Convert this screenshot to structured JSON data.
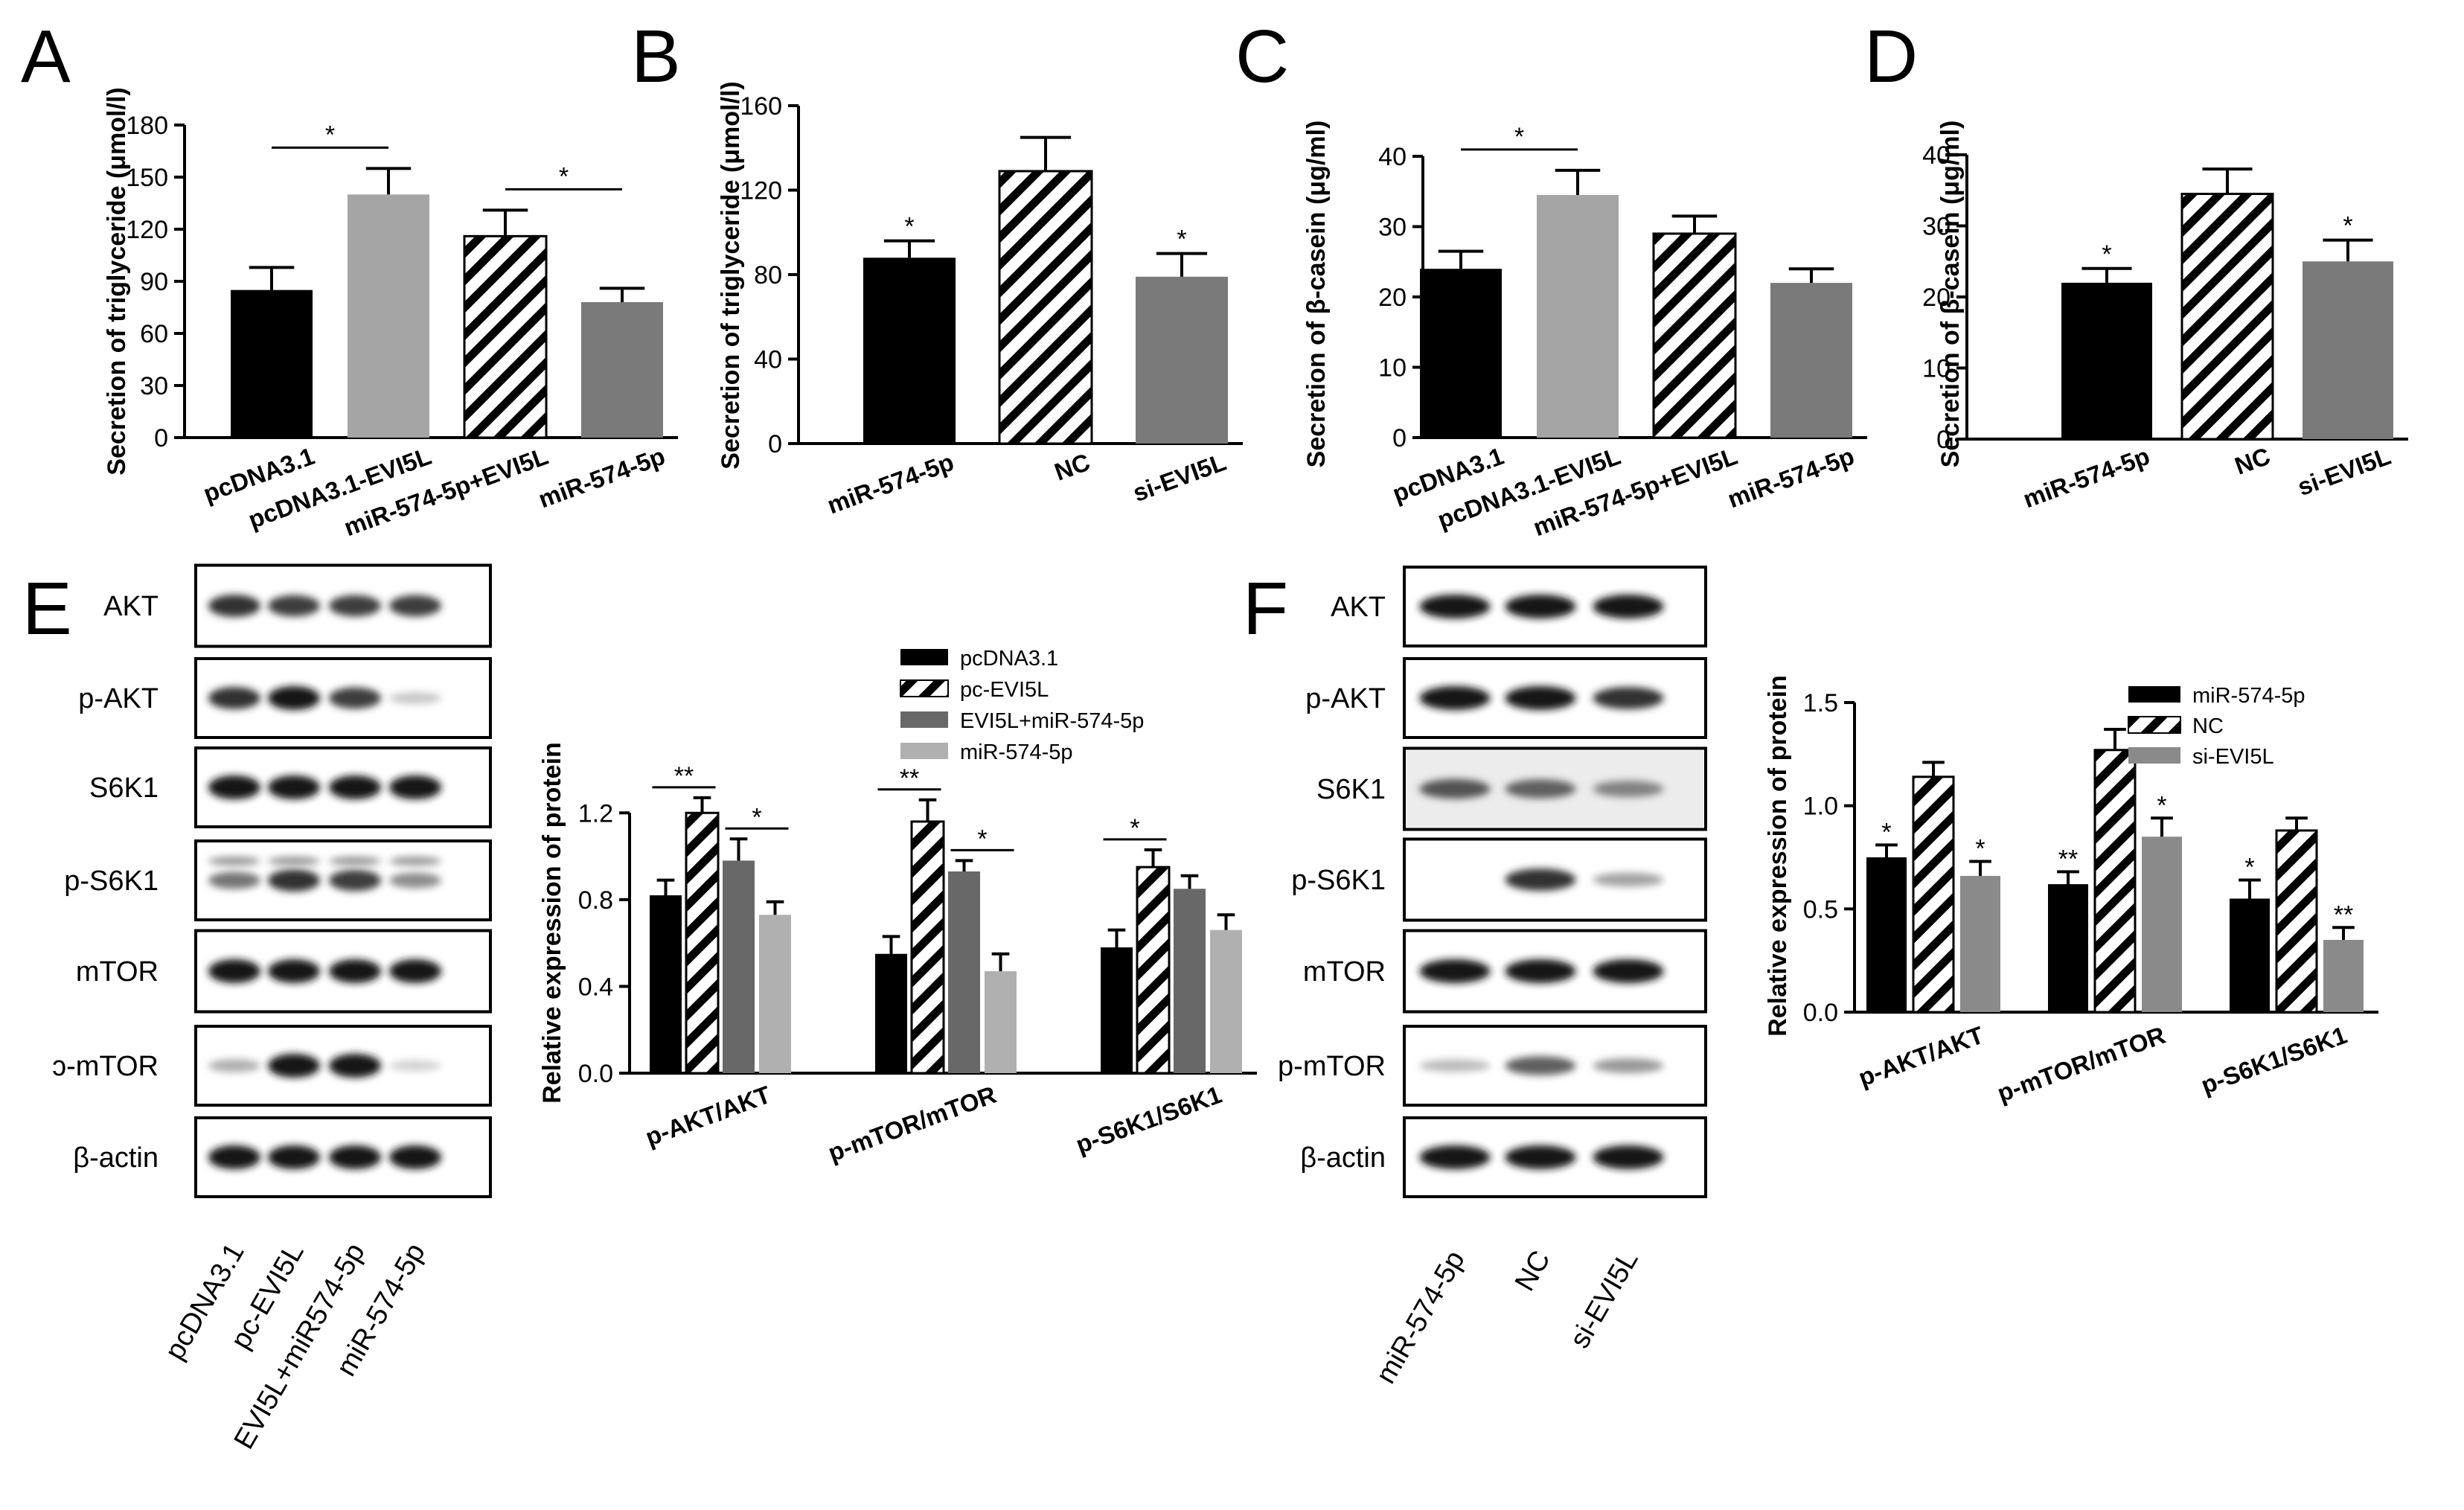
{
  "chart_data": [
    {
      "panel": "A",
      "type": "bar",
      "ylabel": "Secretion of triglyceride (μmol/l)",
      "ylim": [
        0,
        180
      ],
      "yticks": [
        0,
        30,
        60,
        90,
        120,
        150,
        180
      ],
      "categories": [
        "pcDNA3.1",
        "pcDNA3.1-EVI5L",
        "miR-574-5p+EVI5L",
        "miR-574-5p"
      ],
      "values": [
        85,
        140,
        116,
        78
      ],
      "errors": [
        13,
        15,
        15,
        8
      ],
      "fills": [
        "black",
        "lightgray",
        "hatch",
        "gray"
      ],
      "brackets": [
        {
          "from": 0,
          "to": 1,
          "label": "*"
        },
        {
          "from": 2,
          "to": 3,
          "label": "*"
        }
      ],
      "bar_labels": [
        "",
        "",
        "",
        ""
      ]
    },
    {
      "panel": "B",
      "type": "bar",
      "ylabel": "Secretion of triglyceride (μmol/l)",
      "ylim": [
        0,
        160
      ],
      "yticks": [
        0,
        40,
        80,
        120,
        160
      ],
      "categories": [
        "miR-574-5p",
        "NC",
        "si-EVI5L"
      ],
      "values": [
        88,
        129,
        79
      ],
      "errors": [
        8,
        16,
        11
      ],
      "fills": [
        "black",
        "hatch",
        "gray"
      ],
      "brackets": [],
      "bar_labels": [
        "*",
        "",
        "*"
      ]
    },
    {
      "panel": "C",
      "type": "bar",
      "ylabel": "Secretion of β-casein (μg/ml)",
      "ylim": [
        0,
        40
      ],
      "yticks": [
        0,
        10,
        20,
        30,
        40
      ],
      "categories": [
        "pcDNA3.1",
        "pcDNA3.1-EVI5L",
        "miR-574-5p+EVI5L",
        "miR-574-5p"
      ],
      "values": [
        24,
        34.5,
        29,
        22
      ],
      "errors": [
        2.5,
        3.5,
        2.5,
        2
      ],
      "fills": [
        "black",
        "lightgray",
        "hatch",
        "gray"
      ],
      "brackets": [
        {
          "from": 0,
          "to": 1,
          "label": "*"
        }
      ],
      "bar_labels": [
        "",
        "",
        "",
        ""
      ]
    },
    {
      "panel": "D",
      "type": "bar",
      "ylabel": "Secretion of β-casein (μg/ml)",
      "ylim": [
        0,
        40
      ],
      "yticks": [
        0,
        10,
        20,
        30,
        40
      ],
      "categories": [
        "miR-574-5p",
        "NC",
        "si-EVI5L"
      ],
      "values": [
        22,
        34.5,
        25
      ],
      "errors": [
        2,
        3.5,
        3
      ],
      "fills": [
        "black",
        "hatch",
        "gray"
      ],
      "brackets": [],
      "bar_labels": [
        "*",
        "",
        "*"
      ]
    },
    {
      "panel": "E",
      "type": "bar",
      "ylabel": "Relative expression of protein",
      "ylim": [
        0,
        1.4
      ],
      "yticks": [
        "0.0",
        "0.4",
        "0.8",
        "1.2"
      ],
      "categories": [
        "p-AKT/AKT",
        "p-mTOR/mTOR",
        "p-S6K1/S6K1"
      ],
      "series": [
        {
          "name": "pcDNA3.1",
          "fill": "black",
          "values": [
            0.82,
            0.55,
            0.58
          ],
          "errors": [
            0.07,
            0.08,
            0.08
          ]
        },
        {
          "name": "pc-EVI5L",
          "fill": "hatch",
          "values": [
            1.2,
            1.16,
            0.95
          ],
          "errors": [
            0.07,
            0.1,
            0.08
          ]
        },
        {
          "name": "EVI5L+miR-574-5p",
          "fill": "darkgray",
          "values": [
            0.98,
            0.93,
            0.85
          ],
          "errors": [
            0.1,
            0.05,
            0.06
          ]
        },
        {
          "name": "miR-574-5p",
          "fill": "lightgray",
          "values": [
            0.73,
            0.47,
            0.66
          ],
          "errors": [
            0.06,
            0.08,
            0.07
          ]
        }
      ],
      "brackets": [
        {
          "group": 0,
          "from": 0,
          "to": 1,
          "label": "**"
        },
        {
          "group": 0,
          "from": 2,
          "to": 3,
          "label": "*"
        },
        {
          "group": 1,
          "from": 0,
          "to": 1,
          "label": "**"
        },
        {
          "group": 1,
          "from": 2,
          "to": 3,
          "label": "*"
        },
        {
          "group": 2,
          "from": 0,
          "to": 1,
          "label": "*"
        }
      ],
      "bar_labels": []
    },
    {
      "panel": "F",
      "type": "bar",
      "ylabel": "Relative expression of protein",
      "ylim": [
        0,
        1.5
      ],
      "yticks": [
        "0.0",
        "0.5",
        "1.0",
        "1.5"
      ],
      "categories": [
        "p-AKT/AKT",
        "p-mTOR/mTOR",
        "p-S6K1/S6K1"
      ],
      "series": [
        {
          "name": "miR-574-5p",
          "fill": "black",
          "values": [
            0.75,
            0.62,
            0.55
          ],
          "errors": [
            0.06,
            0.06,
            0.09
          ]
        },
        {
          "name": "NC",
          "fill": "hatch",
          "values": [
            1.14,
            1.27,
            0.88
          ],
          "errors": [
            0.07,
            0.1,
            0.06
          ]
        },
        {
          "name": "si-EVI5L",
          "fill": "gray",
          "values": [
            0.66,
            0.85,
            0.35
          ],
          "errors": [
            0.07,
            0.09,
            0.06
          ]
        }
      ],
      "brackets": [],
      "bar_labels": [
        [
          "*",
          "",
          "*"
        ],
        [
          "**",
          "",
          "*"
        ],
        [
          "*",
          "",
          "**"
        ]
      ]
    }
  ],
  "blots": {
    "E": {
      "letter": "E",
      "rows": [
        "AKT",
        "p-AKT",
        "S6K1",
        "p-S6K1",
        "mTOR",
        "ɔ-mTOR",
        "β-actin"
      ],
      "lanes": [
        "pcDNA3.1",
        "pc-EVI5L",
        "EVI5L+miR574-5p",
        "miR-574-5p"
      ]
    },
    "F": {
      "letter": "F",
      "rows": [
        "AKT",
        "p-AKT",
        "S6K1",
        "p-S6K1",
        "mTOR",
        "p-mTOR",
        "β-actin"
      ],
      "lanes": [
        "miR-574-5p",
        "NC",
        "si-EVI5L"
      ]
    }
  },
  "colors": {
    "black": "#000000",
    "lightgray": "#a5a5a5",
    "gray": "#7a7a7a",
    "darkgray": "#686868",
    "lightgray2": "#b0b0b0",
    "grayF": "#8a8a8a",
    "hatch": "#000000"
  }
}
